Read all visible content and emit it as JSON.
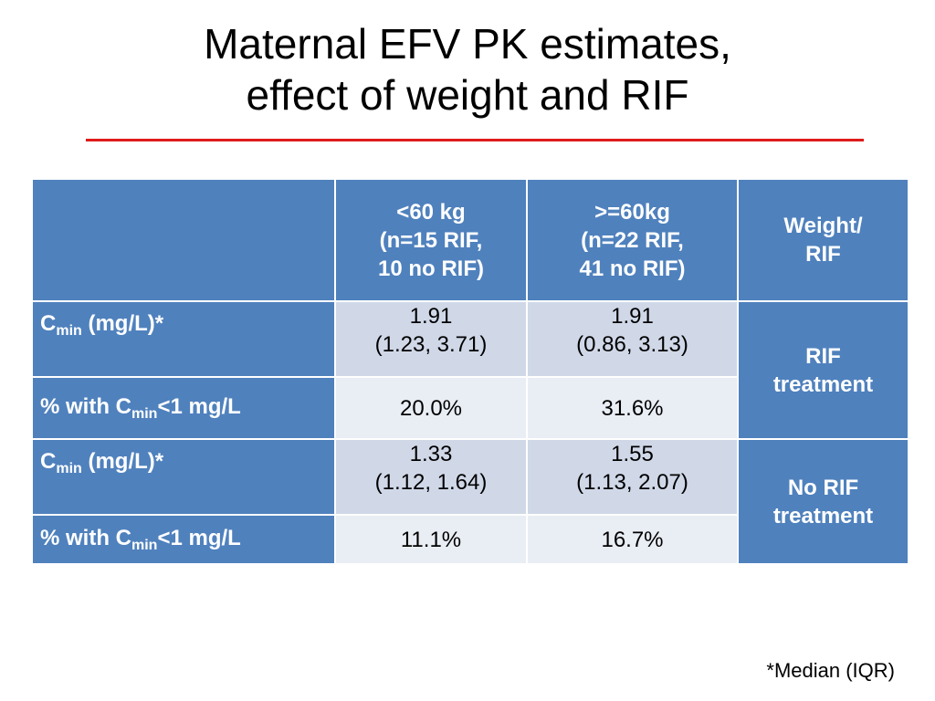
{
  "title": {
    "line1": "Maternal EFV PK estimates,",
    "line2": "effect of weight and RIF"
  },
  "table": {
    "header": {
      "col1": [
        "<60 kg",
        "(n=15 RIF,",
        "10 no RIF)"
      ],
      "col2": [
        ">=60kg",
        "(n=22 RIF,",
        "41 no RIF)"
      ],
      "col3": [
        "Weight/",
        "RIF"
      ]
    },
    "row_labels": {
      "cmin_prefix": "C",
      "cmin_sub": "min",
      "cmin_suffix": " (mg/L)*",
      "pct_prefix": "% with C",
      "pct_sub": "min",
      "pct_suffix": "<1 mg/L"
    },
    "groups": [
      {
        "label": [
          "RIF",
          "treatment"
        ],
        "cmin": {
          "lt60": [
            "1.91",
            "(1.23, 3.71)"
          ],
          "ge60": [
            "1.91",
            "(0.86, 3.13)"
          ]
        },
        "pct": {
          "lt60": "20.0%",
          "ge60": "31.6%"
        }
      },
      {
        "label": [
          "No RIF",
          "treatment"
        ],
        "cmin": {
          "lt60": [
            "1.33",
            "(1.12, 1.64)"
          ],
          "ge60": [
            "1.55",
            "(1.13, 2.07)"
          ]
        },
        "pct": {
          "lt60": "11.1%",
          "ge60": "16.7%"
        }
      }
    ]
  },
  "footnote": "*Median (IQR)",
  "colors": {
    "header_blue": "#4f81bd",
    "row_light": "#d0d8e8",
    "row_lighter": "#e9edf4",
    "title_rule": "#e01b1b"
  }
}
